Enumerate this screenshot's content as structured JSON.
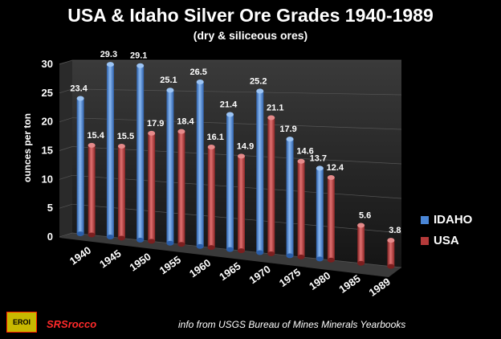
{
  "colors": {
    "background": "#000000",
    "idaho": "#4a86d6",
    "usa": "#b53a3a",
    "brand": "#ff2a2a",
    "axis_text": "#ffffff"
  },
  "footer": {
    "logo_text": "EROI",
    "brand": "SRSrocco",
    "source": "info from USGS Bureau of Mines Minerals Yearbooks"
  },
  "chart_data": {
    "type": "bar",
    "title": "USA & Idaho Silver Ore Grades 1940-1989",
    "subtitle": "(dry & siliceous ores)",
    "xlabel": "",
    "ylabel": "ounces per ton",
    "ylim": [
      0,
      30
    ],
    "yticks": [
      "0",
      "5",
      "10",
      "15",
      "20",
      "25",
      "30"
    ],
    "categories": [
      "1940",
      "1945",
      "1950",
      "1955",
      "1960",
      "1965",
      "1970",
      "1975",
      "1980",
      "1985",
      "1989"
    ],
    "series": [
      {
        "name": "IDAHO",
        "values": [
          23.4,
          29.3,
          29.1,
          25.1,
          26.5,
          21.4,
          25.2,
          17.9,
          13.7,
          null,
          null
        ],
        "labels": [
          "23.4",
          "29.3",
          "29.1",
          "25.1",
          "26.5",
          "21.4",
          "25.2",
          "17.9",
          "13.7",
          "",
          ""
        ]
      },
      {
        "name": "USA",
        "values": [
          15.4,
          15.5,
          17.9,
          18.4,
          16.1,
          14.9,
          21.1,
          14.6,
          12.4,
          5.6,
          3.8
        ],
        "labels": [
          "15.4",
          "15.5",
          "17.9",
          "18.4",
          "16.1",
          "14.9",
          "21.1",
          "14.6",
          "12.4",
          "5.6",
          "3.8"
        ]
      }
    ],
    "legend": "right"
  }
}
